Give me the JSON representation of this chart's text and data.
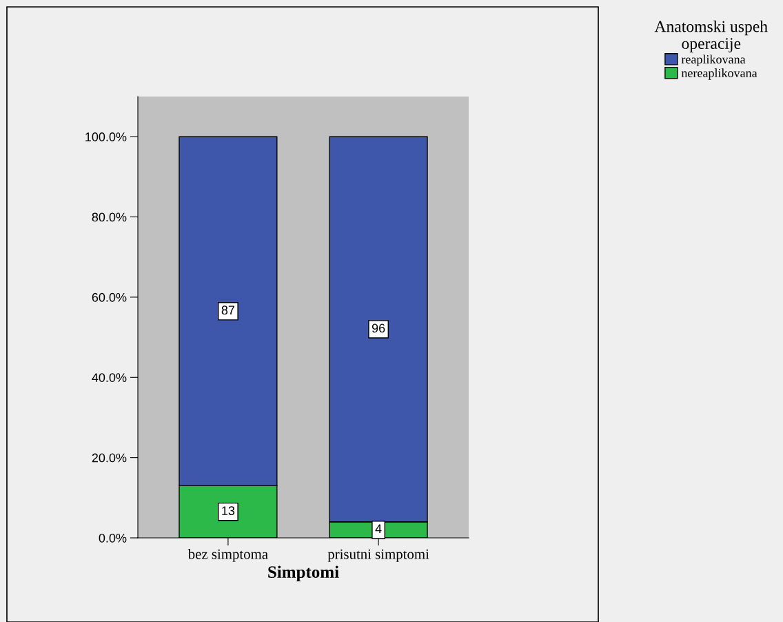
{
  "chart_data": {
    "type": "bar",
    "stacked": true,
    "xlabel": "Simptomi",
    "legend_title": "Anatomski uspeh\noperacije",
    "legend": "top right",
    "categories": [
      "bez simptoma",
      "prisutni simptomi"
    ],
    "series": [
      {
        "name": "nereaplikovana",
        "color": "#2db84a",
        "values": [
          13,
          4
        ]
      },
      {
        "name": "reaplikovana",
        "color": "#3f57aa",
        "values": [
          87,
          96
        ]
      }
    ],
    "ylim": [
      0,
      110
    ],
    "yticks": [
      {
        "value": 0,
        "label": "0.0%"
      },
      {
        "value": 20,
        "label": "20.0%"
      },
      {
        "value": 40,
        "label": "40.0%"
      },
      {
        "value": 60,
        "label": "60.0%"
      },
      {
        "value": 80,
        "label": "80.0%"
      },
      {
        "value": 100,
        "label": "100.0%"
      }
    ],
    "data_labels": true,
    "grid": false
  }
}
